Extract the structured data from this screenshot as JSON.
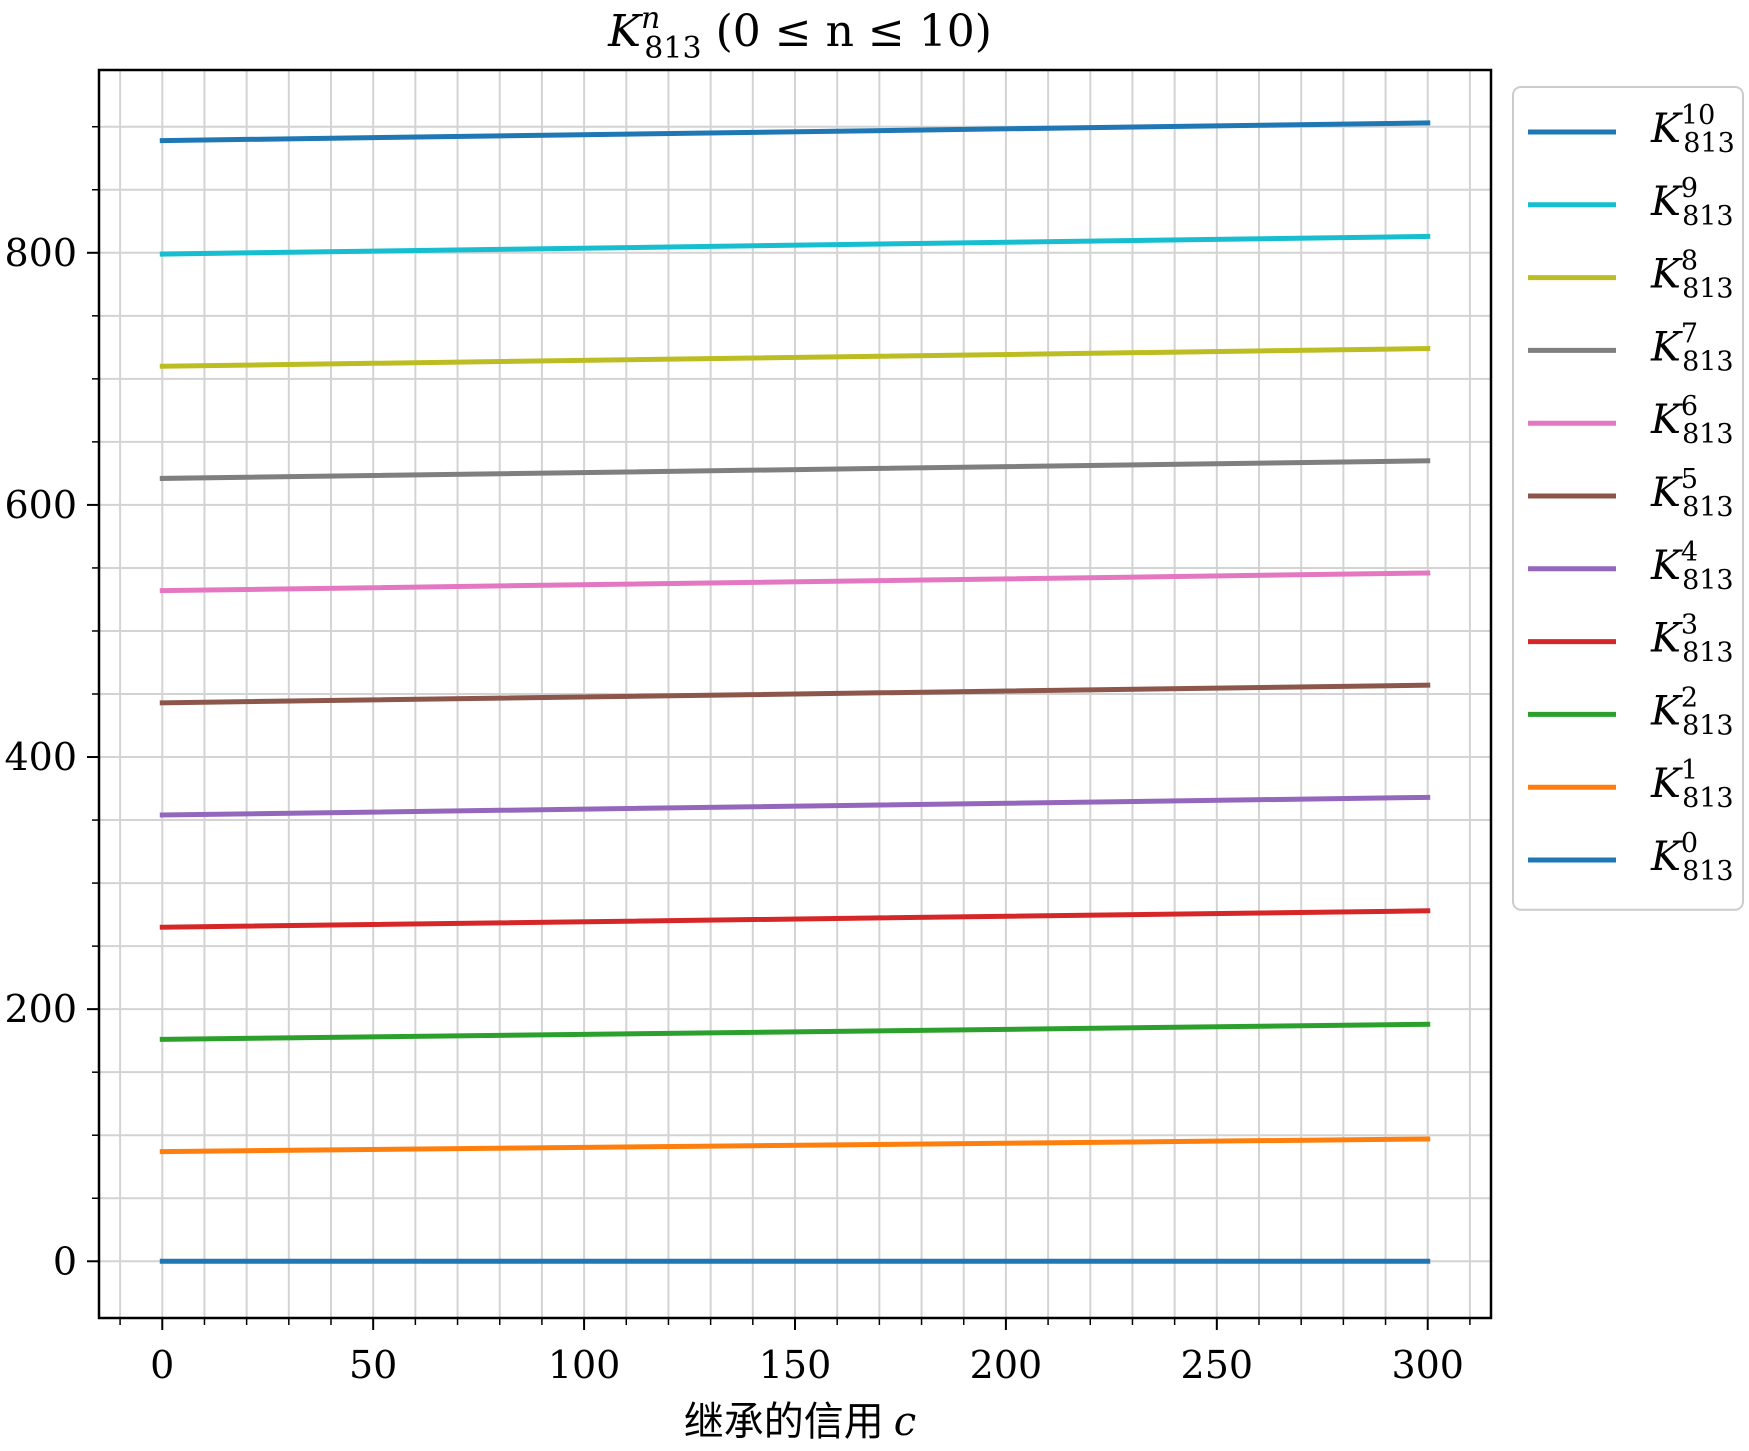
{
  "chart_data": {
    "type": "line",
    "title": {
      "main": "K",
      "superscript": "n",
      "subscript": "813",
      "range": "(0 ≤ n ≤ 10)"
    },
    "xlabel": {
      "text": "继承的信用",
      "variable": "c"
    },
    "ylabel": "",
    "xlim": [
      -15,
      315
    ],
    "ylim": [
      -45,
      945
    ],
    "x_ticks": [
      0,
      50,
      100,
      150,
      200,
      250,
      300
    ],
    "y_ticks": [
      0,
      200,
      400,
      600,
      800
    ],
    "x_minor_step": 10,
    "y_minor_step": 50,
    "grid": true,
    "legend_position": "outside-right-top",
    "x": [
      0,
      300
    ],
    "series": [
      {
        "name": "K^10_813",
        "base": "K",
        "sup": "10",
        "sub": "813",
        "color": "#1f77b4",
        "values": [
          889,
          903
        ]
      },
      {
        "name": "K^9_813",
        "base": "K",
        "sup": "9",
        "sub": "813",
        "color": "#17becf",
        "values": [
          799,
          813
        ]
      },
      {
        "name": "K^8_813",
        "base": "K",
        "sup": "8",
        "sub": "813",
        "color": "#bcbd22",
        "values": [
          710,
          724
        ]
      },
      {
        "name": "K^7_813",
        "base": "K",
        "sup": "7",
        "sub": "813",
        "color": "#7f7f7f",
        "values": [
          621,
          635
        ]
      },
      {
        "name": "K^6_813",
        "base": "K",
        "sup": "6",
        "sub": "813",
        "color": "#e377c2",
        "values": [
          532,
          546
        ]
      },
      {
        "name": "K^5_813",
        "base": "K",
        "sup": "5",
        "sub": "813",
        "color": "#8c564b",
        "values": [
          443,
          457
        ]
      },
      {
        "name": "K^4_813",
        "base": "K",
        "sup": "4",
        "sub": "813",
        "color": "#9467bd",
        "values": [
          354,
          368
        ]
      },
      {
        "name": "K^3_813",
        "base": "K",
        "sup": "3",
        "sub": "813",
        "color": "#d62728",
        "values": [
          265,
          278
        ]
      },
      {
        "name": "K^2_813",
        "base": "K",
        "sup": "2",
        "sub": "813",
        "color": "#2ca02c",
        "values": [
          176,
          188
        ]
      },
      {
        "name": "K^1_813",
        "base": "K",
        "sup": "1",
        "sub": "813",
        "color": "#ff7f0e",
        "values": [
          87,
          97
        ]
      },
      {
        "name": "K^0_813",
        "base": "K",
        "sup": "0",
        "sub": "813",
        "color": "#1f77b4",
        "values": [
          0,
          0
        ]
      }
    ]
  }
}
